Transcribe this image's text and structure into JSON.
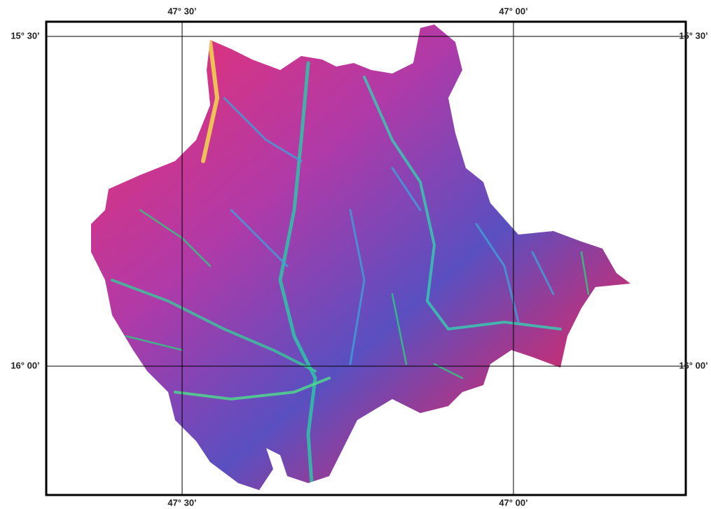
{
  "graticule": {
    "longitudes": [
      "47° 30’",
      "47° 00’"
    ],
    "latitudes": [
      "15° 30’",
      "16° 00’"
    ]
  }
}
